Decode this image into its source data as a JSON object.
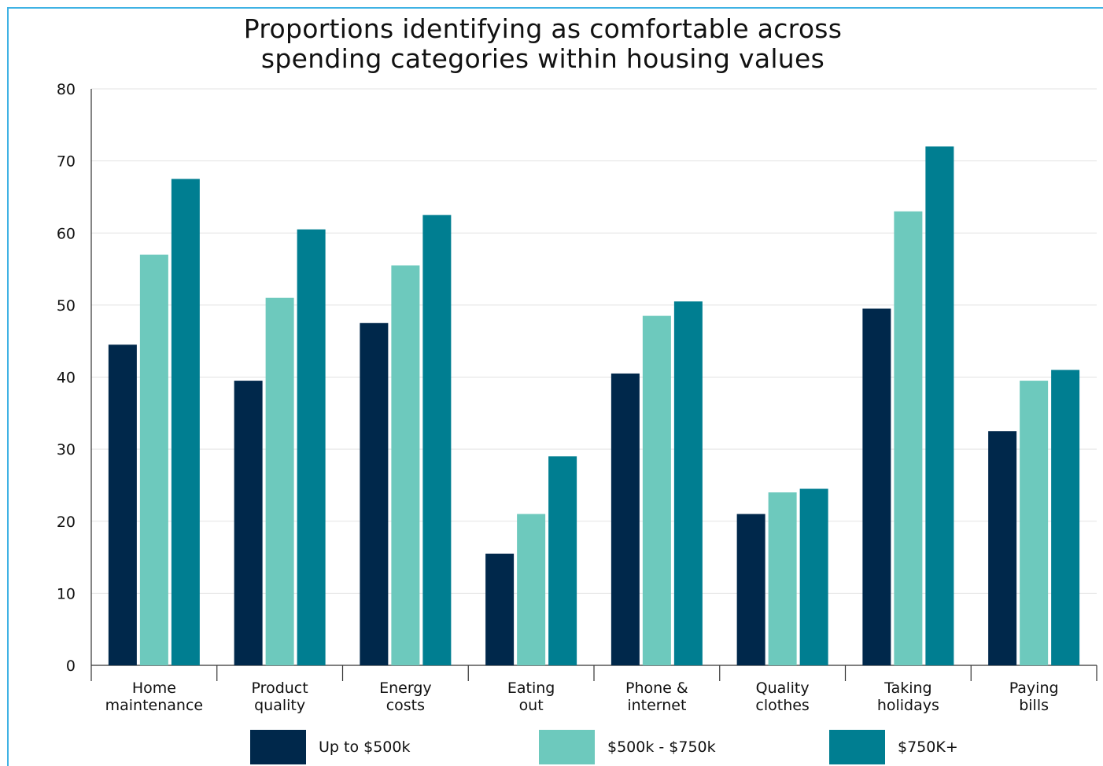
{
  "chart_data": {
    "type": "bar",
    "title": [
      "Proportions identifying as comfortable across",
      "spending categories within housing values"
    ],
    "categories": [
      [
        "Home",
        "maintenance"
      ],
      [
        "Product",
        "quality"
      ],
      [
        "Energy",
        "costs"
      ],
      [
        "Eating",
        "out"
      ],
      [
        "Phone &",
        "internet"
      ],
      [
        "Quality",
        "clothes"
      ],
      [
        "Taking",
        "holidays"
      ],
      [
        "Paying",
        "bills"
      ]
    ],
    "series": [
      {
        "name": "Up to $500k",
        "color": "#00284b",
        "values": [
          44.5,
          39.5,
          47.5,
          15.5,
          40.5,
          21,
          49.5,
          32.5
        ]
      },
      {
        "name": "$500k - $750k",
        "color": "#6dc9bd",
        "values": [
          57,
          51,
          55.5,
          21,
          48.5,
          24,
          63,
          39.5
        ]
      },
      {
        "name": "$750K+",
        "color": "#007e91",
        "values": [
          67.5,
          60.5,
          62.5,
          29,
          50.5,
          24.5,
          72,
          41
        ]
      }
    ],
    "yticks": [
      "0",
      "10",
      "20",
      "30",
      "40",
      "50",
      "60",
      "70",
      "80"
    ],
    "ylim": [
      0,
      80
    ],
    "grid": true,
    "legend_position": "bottom",
    "xlabel": "",
    "ylabel": ""
  }
}
